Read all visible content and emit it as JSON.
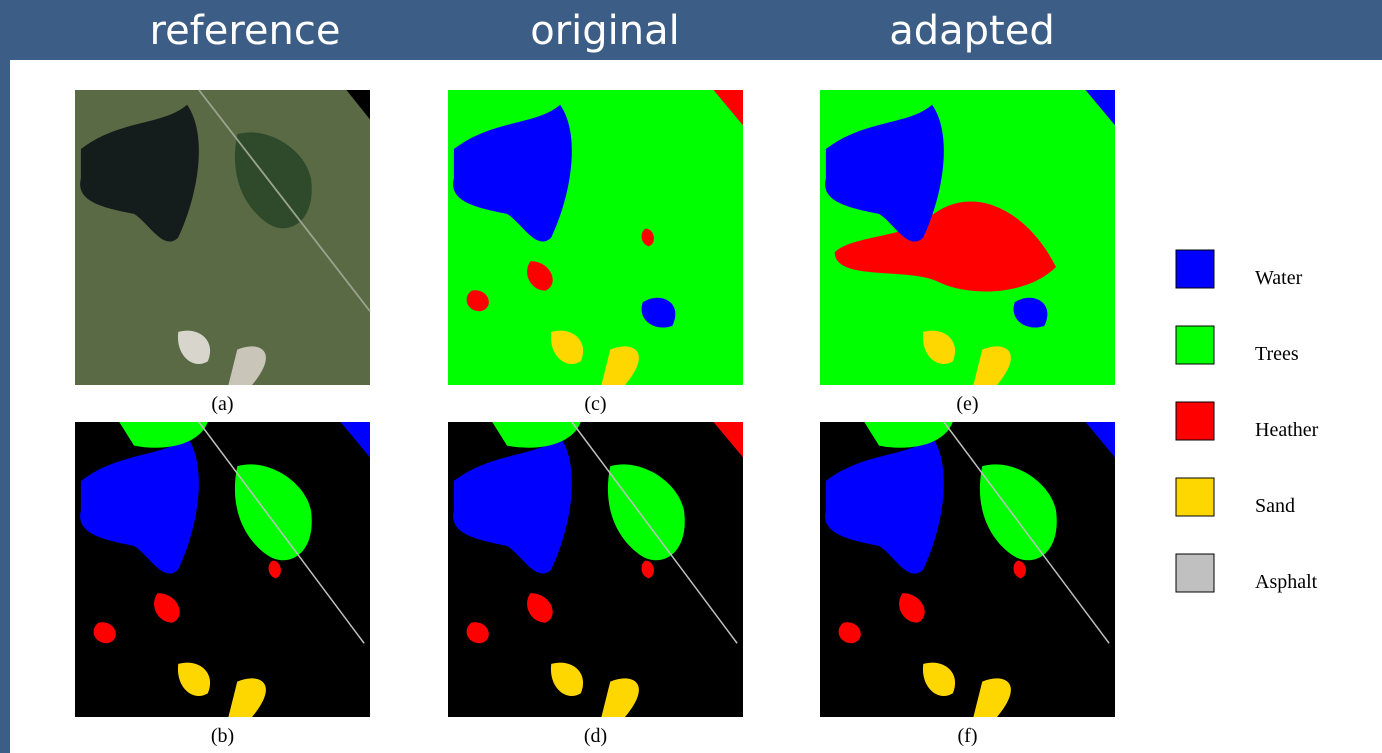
{
  "header": {
    "titles": [
      "reference",
      "original",
      "adapted"
    ]
  },
  "figure": {
    "captions": [
      "(a)",
      "(c)",
      "(e)",
      "(b)",
      "(d)",
      "(f)"
    ],
    "legend": [
      {
        "label": "Water",
        "color": "#0000ff"
      },
      {
        "label": "Trees",
        "color": "#00ff00"
      },
      {
        "label": "Heather",
        "color": "#ff0000"
      },
      {
        "label": "Sand",
        "color": "#ffd700"
      },
      {
        "label": "Asphalt",
        "color": "#c0c0c0"
      }
    ]
  }
}
